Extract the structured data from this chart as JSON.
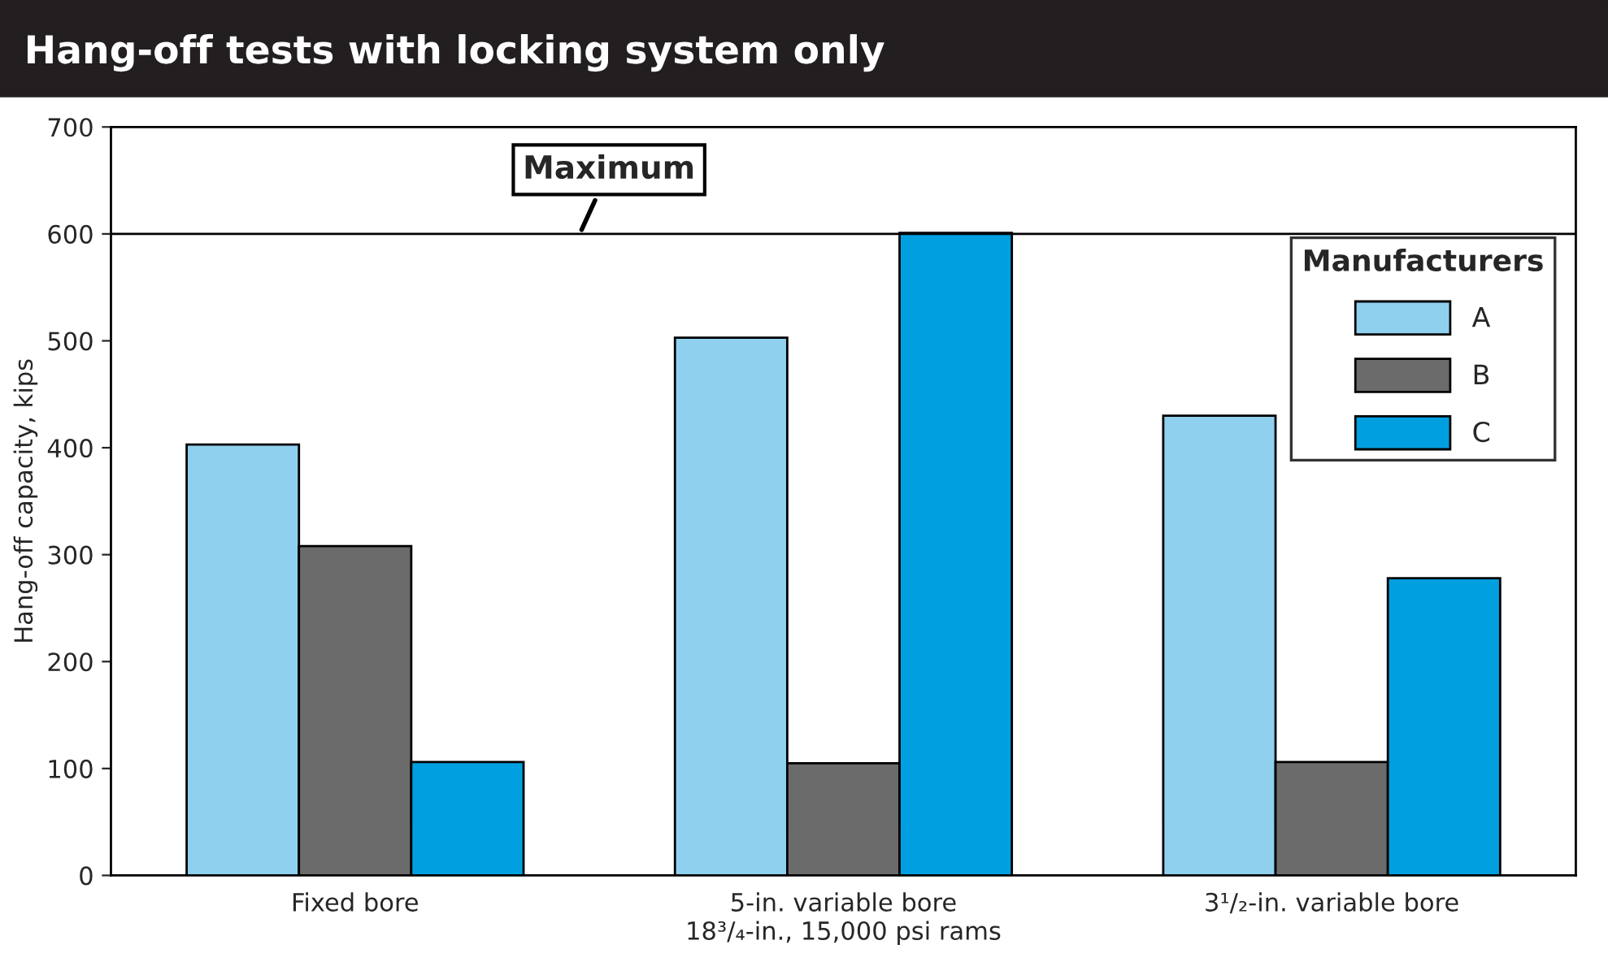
{
  "chart_data": {
    "type": "bar",
    "title": "Hang-off tests with locking system only",
    "ylabel": "Hang-off capacity, kips",
    "xlabel": "18³/₄-in., 15,000 psi rams",
    "categories": [
      "Fixed bore",
      "5-in. variable bore",
      "3¹/₂-in. variable bore"
    ],
    "series": [
      {
        "name": "A",
        "color": "#8fd0ee",
        "values": [
          403,
          503,
          430
        ]
      },
      {
        "name": "B",
        "color": "#6b6b6b",
        "values": [
          308,
          105,
          106
        ]
      },
      {
        "name": "C",
        "color": "#00a0e0",
        "values": [
          106,
          601,
          278
        ]
      }
    ],
    "ylim": [
      0,
      700
    ],
    "yticks": [
      0,
      100,
      200,
      300,
      400,
      500,
      600,
      700
    ],
    "ref_lines": [
      {
        "axis": "y",
        "value": 600,
        "label": "Maximum",
        "color": "#000000"
      }
    ],
    "legend": "top right",
    "legend_title": "Manufacturers",
    "grid": false
  }
}
